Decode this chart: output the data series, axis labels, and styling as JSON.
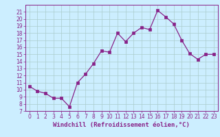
{
  "x": [
    0,
    1,
    2,
    3,
    4,
    5,
    6,
    7,
    8,
    9,
    10,
    11,
    12,
    13,
    14,
    15,
    16,
    17,
    18,
    19,
    20,
    21,
    22,
    23
  ],
  "y": [
    10.5,
    9.8,
    9.5,
    8.8,
    8.8,
    7.6,
    11.0,
    12.2,
    13.7,
    15.5,
    15.3,
    18.0,
    16.8,
    18.0,
    18.8,
    18.5,
    21.2,
    20.3,
    19.3,
    17.0,
    15.1,
    14.3,
    15.0,
    15.0
  ],
  "line_color": "#882288",
  "marker": "s",
  "marker_size": 2.2,
  "bg_color": "#cceeff",
  "grid_color": "#aacccc",
  "xlabel": "Windchill (Refroidissement éolien,°C)",
  "xlim": [
    -0.5,
    23.5
  ],
  "ylim": [
    7,
    22
  ],
  "xticks": [
    0,
    1,
    2,
    3,
    4,
    5,
    6,
    7,
    8,
    9,
    10,
    11,
    12,
    13,
    14,
    15,
    16,
    17,
    18,
    19,
    20,
    21,
    22,
    23
  ],
  "yticks": [
    7,
    8,
    9,
    10,
    11,
    12,
    13,
    14,
    15,
    16,
    17,
    18,
    19,
    20,
    21
  ],
  "xlabel_fontsize": 6.5,
  "tick_fontsize": 5.5,
  "line_width": 0.9
}
